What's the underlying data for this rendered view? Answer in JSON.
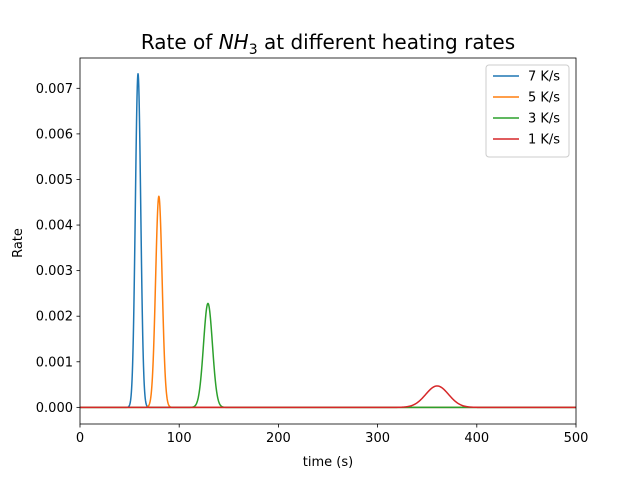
{
  "chart_data": {
    "type": "line",
    "title_prefix": "Rate of ",
    "title_species": "NH",
    "title_subscript": "3",
    "title_suffix": " at different heating rates",
    "xlabel": "time (s)",
    "ylabel": "Rate",
    "xlim": [
      0,
      500
    ],
    "ylim": [
      -0.000365,
      0.007665
    ],
    "xticks": [
      0,
      100,
      200,
      300,
      400,
      500
    ],
    "yticks": [
      0.0,
      0.001,
      0.002,
      0.003,
      0.004,
      0.005,
      0.006,
      0.007
    ],
    "ytick_labels": [
      "0.000",
      "0.001",
      "0.002",
      "0.003",
      "0.004",
      "0.005",
      "0.006",
      "0.007"
    ],
    "grid": false,
    "legend_position": "top-right",
    "series": [
      {
        "name": "7 K/s",
        "color": "#1f77b4",
        "peak_x": 58.5,
        "peak_y": 0.00732,
        "width": 2.7,
        "x_end": 500
      },
      {
        "name": "5 K/s",
        "color": "#ff7f0e",
        "peak_x": 79.5,
        "peak_y": 0.00463,
        "width": 3.3,
        "x_end": 500
      },
      {
        "name": "3 K/s",
        "color": "#2ca02c",
        "peak_x": 129.0,
        "peak_y": 0.00228,
        "width": 4.5,
        "x_end": 500
      },
      {
        "name": "1 K/s",
        "color": "#d62728",
        "peak_x": 360.0,
        "peak_y": 0.00047,
        "width": 11.5,
        "x_end": 500
      }
    ]
  }
}
